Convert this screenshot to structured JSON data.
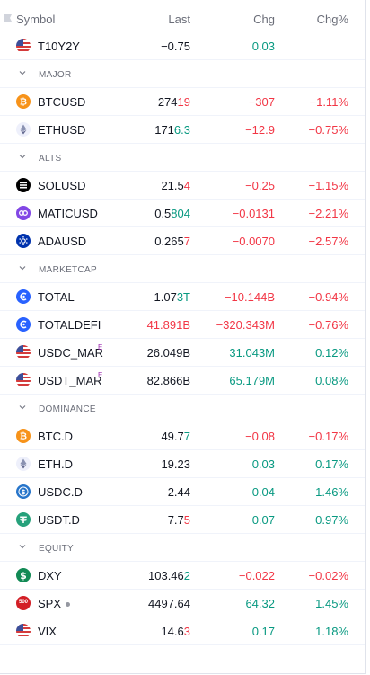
{
  "header": {
    "symbol": "Symbol",
    "last": "Last",
    "chg": "Chg",
    "chg_pct": "Chg%"
  },
  "colors": {
    "negative": "#f23645",
    "positive": "#089981",
    "muted": "#6a6d78"
  },
  "rows": [
    {
      "kind": "item",
      "icon": "us-flag-icon",
      "symbol": "T10Y2Y",
      "last_a": "−0.75",
      "last_b": "",
      "last_tone": "",
      "chg": "0.03",
      "chg_tone": "pos",
      "pct": "",
      "pct_tone": ""
    },
    {
      "kind": "section",
      "label": "MAJOR"
    },
    {
      "kind": "item",
      "icon": "bitcoin-icon",
      "symbol": "BTCUSD",
      "last_a": "274",
      "last_b": "19",
      "last_tone": "neg",
      "chg": "−307",
      "chg_tone": "neg",
      "pct": "−1.11%",
      "pct_tone": "neg"
    },
    {
      "kind": "item",
      "icon": "ethereum-icon",
      "symbol": "ETHUSD",
      "last_a": "171",
      "last_b": "6.3",
      "last_tone": "pos",
      "chg": "−12.9",
      "chg_tone": "neg",
      "pct": "−0.75%",
      "pct_tone": "neg"
    },
    {
      "kind": "section",
      "label": "ALTS"
    },
    {
      "kind": "item",
      "icon": "solana-icon",
      "symbol": "SOLUSD",
      "last_a": "21.5",
      "last_b": "4",
      "last_tone": "neg",
      "chg": "−0.25",
      "chg_tone": "neg",
      "pct": "−1.15%",
      "pct_tone": "neg"
    },
    {
      "kind": "item",
      "icon": "polygon-icon",
      "symbol": "MATICUSD",
      "last_a": "0.5",
      "last_b": "804",
      "last_tone": "pos",
      "chg": "−0.0131",
      "chg_tone": "neg",
      "pct": "−2.21%",
      "pct_tone": "neg"
    },
    {
      "kind": "item",
      "icon": "cardano-icon",
      "symbol": "ADAUSD",
      "last_a": "0.265",
      "last_b": "7",
      "last_tone": "neg",
      "chg": "−0.0070",
      "chg_tone": "neg",
      "pct": "−2.57%",
      "pct_tone": "neg"
    },
    {
      "kind": "section",
      "label": "MARKETCAP"
    },
    {
      "kind": "item",
      "icon": "total-cap-icon",
      "symbol": "TOTAL",
      "last_a": "1.07",
      "last_b": "3T",
      "last_tone": "pos",
      "chg": "−10.144B",
      "chg_tone": "neg",
      "pct": "−0.94%",
      "pct_tone": "neg"
    },
    {
      "kind": "item",
      "icon": "total-cap-icon",
      "symbol": "TOTALDEFI",
      "last_a": "",
      "last_b": "41.891B",
      "last_tone": "neg",
      "chg": "−320.343M",
      "chg_tone": "neg",
      "pct": "−0.76%",
      "pct_tone": "neg"
    },
    {
      "kind": "item",
      "icon": "us-flag-icon",
      "symbol": "USDC_MAR",
      "sup": "E",
      "last_a": "26.049B",
      "last_b": "",
      "last_tone": "",
      "chg": "31.043M",
      "chg_tone": "pos",
      "pct": "0.12%",
      "pct_tone": "pos"
    },
    {
      "kind": "item",
      "icon": "us-flag-icon",
      "symbol": "USDT_MAR",
      "sup": "E",
      "last_a": "82.866B",
      "last_b": "",
      "last_tone": "",
      "chg": "65.179M",
      "chg_tone": "pos",
      "pct": "0.08%",
      "pct_tone": "pos"
    },
    {
      "kind": "section",
      "label": "DOMINANCE"
    },
    {
      "kind": "item",
      "icon": "bitcoin-icon",
      "symbol": "BTC.D",
      "last_a": "49.7",
      "last_b": "7",
      "last_tone": "pos",
      "chg": "−0.08",
      "chg_tone": "neg",
      "pct": "−0.17%",
      "pct_tone": "neg"
    },
    {
      "kind": "item",
      "icon": "ethereum-icon",
      "symbol": "ETH.D",
      "last_a": "19.23",
      "last_b": "",
      "last_tone": "",
      "chg": "0.03",
      "chg_tone": "pos",
      "pct": "0.17%",
      "pct_tone": "pos"
    },
    {
      "kind": "item",
      "icon": "usdc-icon",
      "symbol": "USDC.D",
      "last_a": "2.44",
      "last_b": "",
      "last_tone": "",
      "chg": "0.04",
      "chg_tone": "pos",
      "pct": "1.46%",
      "pct_tone": "pos"
    },
    {
      "kind": "item",
      "icon": "tether-icon",
      "symbol": "USDT.D",
      "last_a": "7.7",
      "last_b": "5",
      "last_tone": "neg",
      "chg": "0.07",
      "chg_tone": "pos",
      "pct": "0.97%",
      "pct_tone": "pos"
    },
    {
      "kind": "section",
      "label": "EQUITY"
    },
    {
      "kind": "item",
      "icon": "dollar-icon",
      "symbol": "DXY",
      "last_a": "103.46",
      "last_b": "2",
      "last_tone": "pos",
      "chg": "−0.022",
      "chg_tone": "neg",
      "pct": "−0.02%",
      "pct_tone": "neg"
    },
    {
      "kind": "item",
      "icon": "sp500-icon",
      "icon_text": "500",
      "symbol": "SPX",
      "dot": true,
      "last_a": "4497.64",
      "last_b": "",
      "last_tone": "",
      "chg": "64.32",
      "chg_tone": "pos",
      "pct": "1.45%",
      "pct_tone": "pos"
    },
    {
      "kind": "item",
      "icon": "us-flag-icon",
      "symbol": "VIX",
      "last_a": "14.6",
      "last_b": "3",
      "last_tone": "neg",
      "chg": "0.17",
      "chg_tone": "pos",
      "pct": "1.18%",
      "pct_tone": "pos"
    }
  ]
}
